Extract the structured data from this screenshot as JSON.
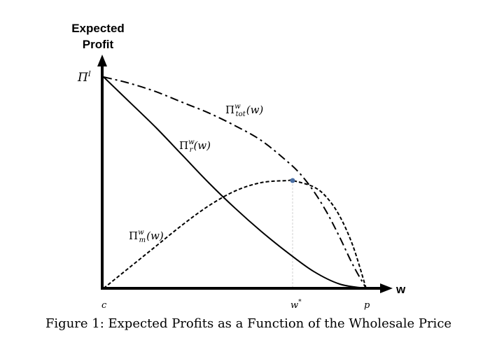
{
  "caption": "Figure 1: Expected Profits as a Function of the Wholesale Price",
  "chart_data": {
    "type": "line",
    "ylabel_line1": "Expected",
    "ylabel_line2": "Profit",
    "xlabel": "w",
    "y_tick_label": "Π",
    "y_tick_superscript": "I",
    "x_ticks": [
      {
        "label": "c",
        "superscript": "",
        "x": 0
      },
      {
        "label": "w",
        "superscript": "*",
        "x": 0.72
      },
      {
        "label": "p",
        "superscript": "",
        "x": 1
      }
    ],
    "xlim": [
      0,
      1
    ],
    "ylim": [
      0,
      1
    ],
    "grid": false,
    "series": [
      {
        "name": "Π",
        "sup": "w",
        "sub": "tot",
        "arg": "(w)",
        "style": "dashdot",
        "color": "#000000",
        "x": [
          0,
          0.1,
          0.2,
          0.3,
          0.4,
          0.5,
          0.6,
          0.7,
          0.75,
          0.8,
          0.85,
          0.9,
          0.95,
          1.0
        ],
        "y": [
          1.0,
          0.97,
          0.93,
          0.88,
          0.83,
          0.77,
          0.7,
          0.6,
          0.54,
          0.46,
          0.36,
          0.24,
          0.11,
          0.0
        ]
      },
      {
        "name": "Π",
        "sup": "w",
        "sub": "r",
        "arg": "(w)",
        "style": "solid",
        "color": "#000000",
        "x": [
          0,
          0.1,
          0.2,
          0.3,
          0.4,
          0.5,
          0.6,
          0.7,
          0.8,
          0.9,
          1.0
        ],
        "y": [
          1.0,
          0.88,
          0.76,
          0.63,
          0.5,
          0.38,
          0.27,
          0.17,
          0.08,
          0.02,
          0.0
        ]
      },
      {
        "name": "Π",
        "sup": "w",
        "sub": "m",
        "arg": "(w)",
        "style": "dashed",
        "color": "#000000",
        "x": [
          0,
          0.1,
          0.2,
          0.3,
          0.4,
          0.5,
          0.6,
          0.7,
          0.72,
          0.8,
          0.85,
          0.9,
          0.95,
          1.0
        ],
        "y": [
          0.0,
          0.1,
          0.2,
          0.3,
          0.39,
          0.46,
          0.5,
          0.51,
          0.51,
          0.48,
          0.43,
          0.34,
          0.2,
          0.0
        ]
      }
    ],
    "marker": {
      "x": 0.72,
      "y": 0.51,
      "color": "#4a6fa5"
    },
    "guide_line": {
      "x": 0.72,
      "color": "#d0d0d0"
    }
  }
}
